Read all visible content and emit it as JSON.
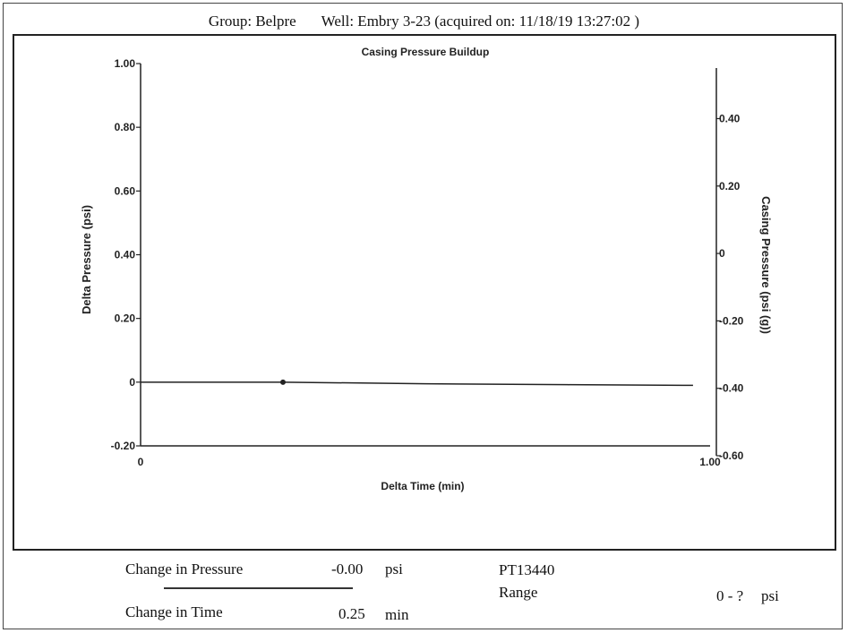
{
  "header": {
    "group": "Group: Belpre",
    "well": "Well: Embry 3-23 (acquired on: 11/18/19 13:27:02 )"
  },
  "chart_data": {
    "type": "line",
    "title": "Casing Pressure Buildup",
    "xlabel": "Delta Time (min)",
    "ylabel_left": "Delta Pressure (psi)",
    "ylabel_right": "Casing Pressure (psi (g))",
    "xlim": [
      0,
      1.0
    ],
    "ylim_left": [
      -0.2,
      1.0
    ],
    "ylim_right": [
      -0.6,
      0.55
    ],
    "x_ticks": [
      "0",
      "1.00"
    ],
    "y_left_ticks": [
      {
        "value": 1.0,
        "label": "1.00"
      },
      {
        "value": 0.8,
        "label": "0.80"
      },
      {
        "value": 0.6,
        "label": "0.60"
      },
      {
        "value": 0.4,
        "label": "0.40"
      },
      {
        "value": 0.2,
        "label": "0.20"
      },
      {
        "value": 0.0,
        "label": "0"
      },
      {
        "value": -0.2,
        "label": "-0.20"
      }
    ],
    "y_right_ticks": [
      {
        "value": 0.4,
        "label": "0.40"
      },
      {
        "value": 0.2,
        "label": "0.20"
      },
      {
        "value": 0.0,
        "label": "0"
      },
      {
        "value": -0.2,
        "label": "-0.20"
      },
      {
        "value": -0.4,
        "label": "-0.40"
      },
      {
        "value": -0.6,
        "label": "-0.60"
      }
    ],
    "grid": false,
    "series": [
      {
        "axis": "left",
        "x": [
          0.0,
          0.25,
          0.5,
          0.75,
          0.97
        ],
        "y": [
          0.0,
          0.0,
          -0.005,
          -0.008,
          -0.01
        ]
      }
    ],
    "markers": [
      {
        "x": 0.25,
        "y": 0.0
      }
    ]
  },
  "footer": {
    "change_pressure_label": "Change in Pressure",
    "change_pressure_value": "-0.00",
    "change_pressure_unit": "psi",
    "change_time_label": "Change in Time",
    "change_time_value": "0.25",
    "change_time_unit": "min",
    "device": "PT13440",
    "range_label": "Range",
    "range_value": "0 - ?",
    "range_unit": "psi"
  }
}
